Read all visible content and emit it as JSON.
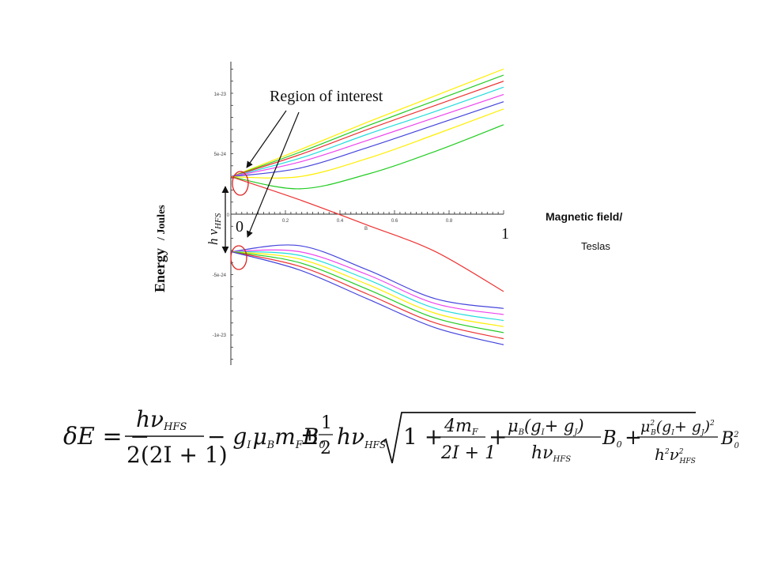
{
  "callout": {
    "text": "Region of interest"
  },
  "x_axis": {
    "label_main": "Magnetic field/",
    "label_unit": "Teslas",
    "zero_label": "0",
    "one_label": "1",
    "small_name": "B",
    "ticks": [
      "0",
      "0.2",
      "0.4",
      "0.6",
      "0.8",
      "1"
    ]
  },
  "y_axis": {
    "label_main": "Energy",
    "label_unit": "/ Joules",
    "ticks": [
      "1e-23",
      "5e-24",
      "0",
      "-5e-24",
      "-1e-23"
    ]
  },
  "splitting_label": {
    "h": "h",
    "nu": "ν",
    "sub": "HFS"
  },
  "equation": {
    "lhs": "δE = −",
    "frac1_num": "hν",
    "frac1_num_sub": "HFS",
    "frac1_den": "2(2I + 1)",
    "term2": "− g",
    "term2_sub1": "I",
    "term2_mid": "μ",
    "term2_sub2": "B",
    "term2_mF": "m",
    "term2_sub3": "F",
    "term2_B": "B",
    "term2_sub4": "0",
    "pm": "±",
    "half_num": "1",
    "half_den": "2",
    "hnu": "hν",
    "hnu_sub": "HFS",
    "one_plus": "1 +",
    "f2_num": "4m",
    "f2_num_sub": "F",
    "f2_den": "2I + 1",
    "f3_num": "μ",
    "f3_num_sub": "B",
    "f3_num_rest": "(g",
    "f3_gI": "I",
    "f3_plus": "+ g",
    "f3_gJ": "J",
    "f3_close": ")",
    "f3_den": "hν",
    "f3_den_sub": "HFS",
    "B0": "B",
    "B0_sub": "0",
    "plus": "+",
    "f4_num": "μ",
    "f4_num_sup": "2",
    "f4_num_sub": "B",
    "f4_num_rest": "(g",
    "f4_gI": "I",
    "f4_plus": "+ g",
    "f4_gJ": "J",
    "f4_close": ")",
    "f4_close_sup": "2",
    "f4_den": "h",
    "f4_den_sup": "2",
    "f4_den_nu": "ν",
    "f4_den_nu_sup": "2",
    "f4_den_nu_sub": "HFS",
    "B0sq": "B",
    "B0sq_sup": "2",
    "B0sq_sub": "0"
  },
  "chart_data": {
    "type": "line",
    "title": "",
    "xlabel": "Magnetic field/ Teslas",
    "ylabel": "Energy / Joules",
    "xlim": [
      0,
      1
    ],
    "ylim": [
      -1.1e-23,
      1.2e-23
    ],
    "x_ticks": [
      0,
      0.2,
      0.4,
      0.6,
      0.8,
      1
    ],
    "y_ticks": [
      1e-23,
      5e-24,
      0,
      -5e-24,
      -1e-23
    ],
    "hfs_splitting": 6.3e-24,
    "series": [
      {
        "color": "#ffee00",
        "values": [
          [
            0,
            3.1e-24
          ],
          [
            0.25,
            5.3e-24
          ],
          [
            0.5,
            7.6e-24
          ],
          [
            0.75,
            9.8e-24
          ],
          [
            1,
            1.2e-23
          ]
        ]
      },
      {
        "color": "#22cc22",
        "values": [
          [
            0,
            3.1e-24
          ],
          [
            0.25,
            5.1e-24
          ],
          [
            0.5,
            7.3e-24
          ],
          [
            0.75,
            9.4e-24
          ],
          [
            1,
            1.15e-23
          ]
        ]
      },
      {
        "color": "#ee3333",
        "values": [
          [
            0,
            3.1e-24
          ],
          [
            0.25,
            4.9e-24
          ],
          [
            0.5,
            7e-24
          ],
          [
            0.75,
            9e-24
          ],
          [
            1,
            1.1e-23
          ]
        ]
      },
      {
        "color": "#22dddd",
        "values": [
          [
            0,
            3.1e-24
          ],
          [
            0.25,
            4.6e-24
          ],
          [
            0.5,
            6.6e-24
          ],
          [
            0.75,
            8.5e-24
          ],
          [
            1,
            1.05e-23
          ]
        ]
      },
      {
        "color": "#ee44ee",
        "values": [
          [
            0,
            3.1e-24
          ],
          [
            0.25,
            4.3e-24
          ],
          [
            0.5,
            6.1e-24
          ],
          [
            0.75,
            8e-24
          ],
          [
            1,
            9.9e-24
          ]
        ]
      },
      {
        "color": "#4444dd",
        "values": [
          [
            0,
            3.1e-24
          ],
          [
            0.25,
            3.8e-24
          ],
          [
            0.5,
            5.5e-24
          ],
          [
            0.75,
            7.4e-24
          ],
          [
            1,
            9.3e-24
          ]
        ]
      },
      {
        "color": "#ffee00",
        "values": [
          [
            0,
            3.1e-24
          ],
          [
            0.25,
            3.1e-24
          ],
          [
            0.5,
            4.6e-24
          ],
          [
            0.75,
            6.6e-24
          ],
          [
            1,
            8.7e-24
          ]
        ]
      },
      {
        "color": "#22cc22",
        "values": [
          [
            0,
            3.1e-24
          ],
          [
            0.25,
            2.1e-24
          ],
          [
            0.5,
            3.3e-24
          ],
          [
            0.75,
            5.2e-24
          ],
          [
            1,
            7.4e-24
          ]
        ]
      },
      {
        "color": "#ee3333",
        "values": [
          [
            0,
            3.1e-24
          ],
          [
            0.25,
            1.2e-24
          ],
          [
            0.5,
            -9e-25
          ],
          [
            0.75,
            -3.1e-24
          ],
          [
            1,
            -6.4e-24
          ]
        ]
      },
      {
        "color": "#4444dd",
        "values": [
          [
            0,
            -3.1e-24
          ],
          [
            0.25,
            -2.6e-24
          ],
          [
            0.5,
            -4.6e-24
          ],
          [
            0.75,
            -7e-24
          ],
          [
            1,
            -7.8e-24
          ]
        ]
      },
      {
        "color": "#ee44ee",
        "values": [
          [
            0,
            -3.1e-24
          ],
          [
            0.25,
            -3.1e-24
          ],
          [
            0.5,
            -5e-24
          ],
          [
            0.75,
            -7.4e-24
          ],
          [
            1,
            -8.3e-24
          ]
        ]
      },
      {
        "color": "#22dddd",
        "values": [
          [
            0,
            -3.1e-24
          ],
          [
            0.25,
            -3.4e-24
          ],
          [
            0.5,
            -5.4e-24
          ],
          [
            0.75,
            -7.8e-24
          ],
          [
            1,
            -8.8e-24
          ]
        ]
      },
      {
        "color": "#ffee00",
        "values": [
          [
            0,
            -3.1e-24
          ],
          [
            0.25,
            -3.7e-24
          ],
          [
            0.5,
            -5.8e-24
          ],
          [
            0.75,
            -8.2e-24
          ],
          [
            1,
            -9.3e-24
          ]
        ]
      },
      {
        "color": "#22cc22",
        "values": [
          [
            0,
            -3.1e-24
          ],
          [
            0.25,
            -4e-24
          ],
          [
            0.5,
            -6.2e-24
          ],
          [
            0.75,
            -8.6e-24
          ],
          [
            1,
            -9.8e-24
          ]
        ]
      },
      {
        "color": "#ee3333",
        "values": [
          [
            0,
            -3.1e-24
          ],
          [
            0.25,
            -4.3e-24
          ],
          [
            0.5,
            -6.6e-24
          ],
          [
            0.75,
            -9e-24
          ],
          [
            1,
            -1.03e-23
          ]
        ]
      },
      {
        "color": "#4444dd",
        "values": [
          [
            0,
            -3.1e-24
          ],
          [
            0.25,
            -4.6e-24
          ],
          [
            0.5,
            -7e-24
          ],
          [
            0.75,
            -9.4e-24
          ],
          [
            1,
            -1.08e-23
          ]
        ]
      }
    ]
  }
}
